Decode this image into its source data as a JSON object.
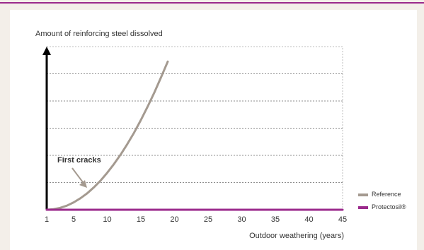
{
  "chart_data": {
    "type": "line",
    "title": "",
    "ylabel": "Amount of reinforcing steel dissolved",
    "xlabel": "Outdoor weathering (years)",
    "x_ticks": [
      "1",
      "5",
      "10",
      "15",
      "20",
      "25",
      "30",
      "35",
      "40",
      "45"
    ],
    "x_tick_values": [
      1,
      5,
      10,
      15,
      20,
      25,
      30,
      35,
      40,
      45
    ],
    "xlim": [
      1,
      45
    ],
    "ylim": [
      0,
      6
    ],
    "grid": "horizontal dashed",
    "legend_position": "right",
    "annotation": "First cracks",
    "series": [
      {
        "name": "Reference",
        "color": "#a49a90",
        "x": [
          1,
          2,
          3,
          4,
          5,
          6,
          7,
          8,
          9,
          10,
          11,
          12,
          13,
          14,
          15,
          16,
          17,
          18,
          19
        ],
        "y": [
          0,
          0.02,
          0.07,
          0.15,
          0.27,
          0.42,
          0.6,
          0.82,
          1.07,
          1.36,
          1.68,
          2.03,
          2.42,
          2.84,
          3.3,
          3.79,
          4.31,
          4.87,
          5.45
        ]
      },
      {
        "name": "Protectosil®",
        "color": "#9b2a8c",
        "x": [
          1,
          45
        ],
        "y": [
          0,
          0
        ]
      }
    ]
  }
}
